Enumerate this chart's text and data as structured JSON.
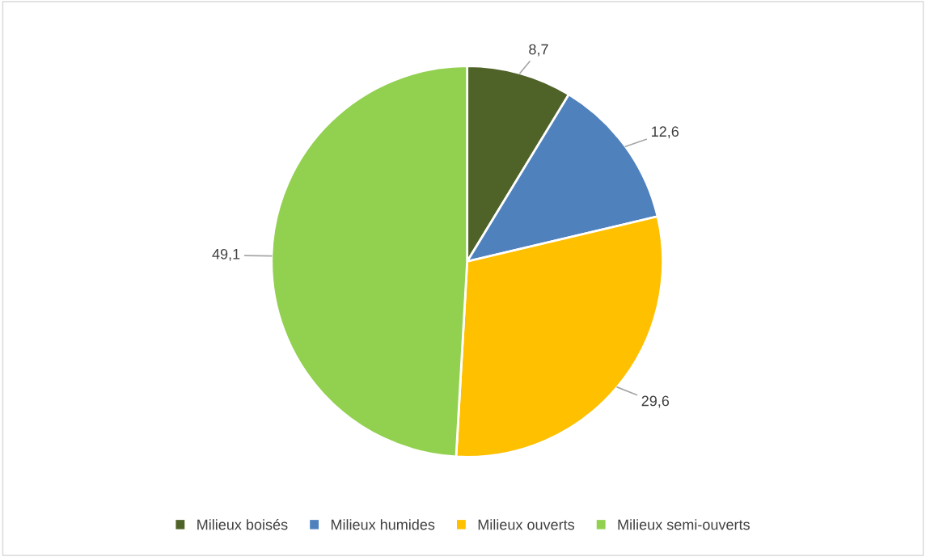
{
  "chart_data": {
    "type": "pie",
    "categories": [
      "Milieux boisés",
      "Milieux humides",
      "Milieux ouverts",
      "Milieux semi-ouverts"
    ],
    "values": [
      8.7,
      12.6,
      29.6,
      49.1
    ],
    "colors": [
      "#4f6228",
      "#4f81bd",
      "#ffc000",
      "#92d050"
    ],
    "value_labels": [
      "8,7",
      "12,6",
      "29,6",
      "49,1"
    ],
    "legend": "bottom"
  }
}
